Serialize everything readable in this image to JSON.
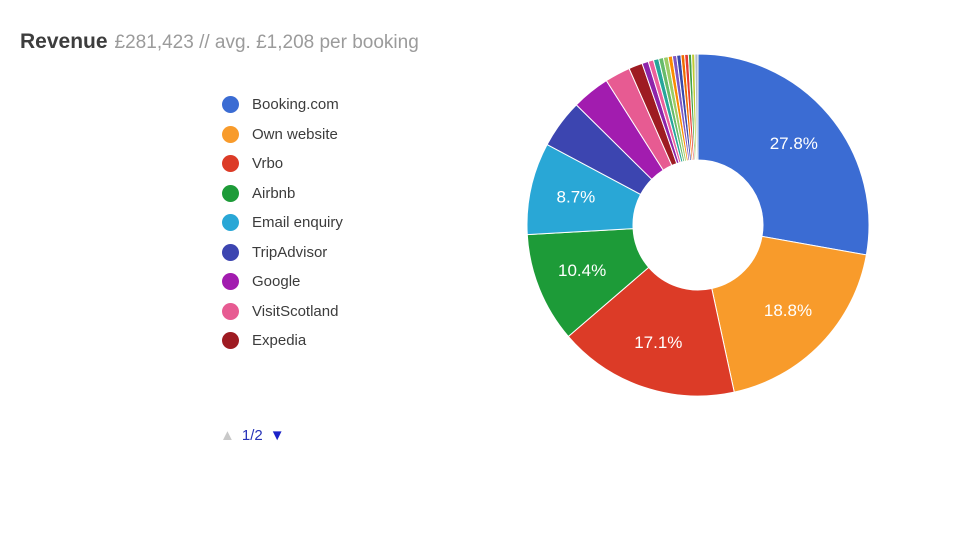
{
  "header": {
    "title": "Revenue",
    "subtitle": "£281,423 // avg. £1,208 per booking"
  },
  "legend": {
    "items": [
      {
        "label": "Booking.com",
        "color": "#3b6cd3"
      },
      {
        "label": "Own website",
        "color": "#f89b2b"
      },
      {
        "label": "Vrbo",
        "color": "#dc3b27"
      },
      {
        "label": "Airbnb",
        "color": "#1d9b38"
      },
      {
        "label": "Email enquiry",
        "color": "#29a7d6"
      },
      {
        "label": "TripAdvisor",
        "color": "#3c45b0"
      },
      {
        "label": "Google",
        "color": "#a21caf"
      },
      {
        "label": "VisitScotland",
        "color": "#e75b92"
      },
      {
        "label": "Expedia",
        "color": "#9e1b22"
      }
    ],
    "pagination": {
      "label": "1/2",
      "up_icon": "▲",
      "down_icon": "▼",
      "up_enabled": false,
      "down_enabled": true,
      "up_color": "#c9c9c9",
      "down_color": "#1b22c8",
      "label_color": "#2632b8"
    }
  },
  "chart_data": {
    "type": "pie",
    "donut": true,
    "title": "Revenue",
    "start_angle_deg": 0,
    "direction": "clockwise",
    "legend_position": "left",
    "hole_ratio": 0.38,
    "label_color": "#ffffff",
    "segments": [
      {
        "label": "Booking.com",
        "pct": 27.8,
        "color": "#3b6cd3",
        "percent_label": "27.8%"
      },
      {
        "label": "Own website",
        "pct": 18.8,
        "color": "#f89b2b",
        "percent_label": "18.8%"
      },
      {
        "label": "Vrbo",
        "pct": 17.1,
        "color": "#dc3b27",
        "percent_label": "17.1%"
      },
      {
        "label": "Airbnb",
        "pct": 10.4,
        "color": "#1d9b38",
        "percent_label": "10.4%"
      },
      {
        "label": "Email enquiry",
        "pct": 8.7,
        "color": "#29a7d6",
        "percent_label": "8.7%"
      },
      {
        "label": "TripAdvisor",
        "pct": 4.6,
        "color": "#3c45b0",
        "percent_label": null
      },
      {
        "label": "Google",
        "pct": 3.6,
        "color": "#a21caf",
        "percent_label": null
      },
      {
        "label": "VisitScotland",
        "pct": 2.4,
        "color": "#e75b92",
        "percent_label": null
      },
      {
        "label": "Expedia",
        "pct": 1.3,
        "color": "#9e1b22",
        "percent_label": null
      },
      {
        "label": null,
        "pct": 0.6,
        "color": "#8e24aa",
        "percent_label": null
      },
      {
        "label": null,
        "pct": 0.5,
        "color": "#ec5f9b",
        "percent_label": null
      },
      {
        "label": null,
        "pct": 0.5,
        "color": "#26a69a",
        "percent_label": null
      },
      {
        "label": null,
        "pct": 0.45,
        "color": "#66bb6a",
        "percent_label": null
      },
      {
        "label": null,
        "pct": 0.45,
        "color": "#9ccc65",
        "percent_label": null
      },
      {
        "label": null,
        "pct": 0.4,
        "color": "#fb8c00",
        "percent_label": null
      },
      {
        "label": null,
        "pct": 0.4,
        "color": "#7e57c2",
        "percent_label": null
      },
      {
        "label": null,
        "pct": 0.4,
        "color": "#3949ab",
        "percent_label": null
      },
      {
        "label": null,
        "pct": 0.35,
        "color": "#ef6c00",
        "percent_label": null
      },
      {
        "label": null,
        "pct": 0.35,
        "color": "#e53935",
        "percent_label": null
      },
      {
        "label": null,
        "pct": 0.3,
        "color": "#43a047",
        "percent_label": null
      },
      {
        "label": null,
        "pct": 0.3,
        "color": "#c0ca33",
        "percent_label": null
      },
      {
        "label": null,
        "pct": 0.3,
        "color": "#b0bec5",
        "percent_label": null
      }
    ]
  }
}
